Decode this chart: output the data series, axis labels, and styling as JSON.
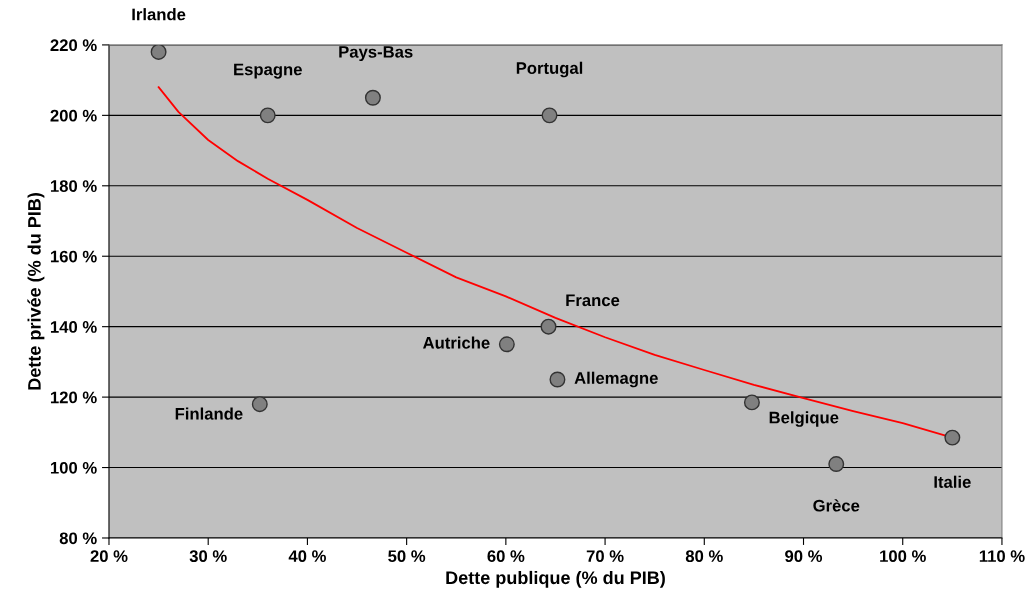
{
  "chart_data": {
    "type": "scatter",
    "xlabel": "Dette publique (% du PIB)",
    "ylabel": "Dette privée (% du PIB)",
    "series": [
      {
        "color": "#808080",
        "marker": "circle",
        "x": [
          25,
          36,
          46.6,
          64.4,
          64.3,
          60.1,
          65.2,
          35.2,
          84.8,
          93.3,
          105
        ],
        "values": [
          218,
          200,
          205,
          200,
          140,
          135,
          125,
          118,
          118.5,
          101,
          108.5
        ]
      },
      {
        "type": "line",
        "color": "#ff0000",
        "marker": "none",
        "x": [
          25,
          27,
          30,
          33,
          36,
          40,
          45,
          50,
          55,
          60,
          65,
          70,
          75,
          80,
          85,
          90,
          95,
          100,
          105
        ],
        "values": [
          208,
          201,
          193,
          187,
          182,
          176,
          168,
          161,
          154,
          148.6,
          142.5,
          137,
          132,
          127.7,
          123.5,
          119.7,
          116,
          112.6,
          108.5
        ]
      }
    ],
    "annotations": [
      {
        "text": "Irlande",
        "x": 25,
        "y": 218
      },
      {
        "text": "Espagne",
        "x": 36,
        "y": 200
      },
      {
        "text": "Pays-Bas",
        "x": 46.6,
        "y": 205
      },
      {
        "text": "Portugal",
        "x": 64.4,
        "y": 200
      },
      {
        "text": "France",
        "x": 64.3,
        "y": 140
      },
      {
        "text": "Autriche",
        "x": 60.1,
        "y": 135
      },
      {
        "text": "Allemagne",
        "x": 65.2,
        "y": 125
      },
      {
        "text": "Finlande",
        "x": 35.2,
        "y": 118
      },
      {
        "text": "Belgique",
        "x": 84.8,
        "y": 118.5
      },
      {
        "text": "Grèce",
        "x": 93.3,
        "y": 101
      },
      {
        "text": "Italie",
        "x": 105,
        "y": 108.5
      }
    ],
    "xlim": [
      20,
      110
    ],
    "xticks": [
      {
        "value": 20,
        "label": "20 %"
      },
      {
        "value": 30,
        "label": "30 %"
      },
      {
        "value": 40,
        "label": "40 %"
      },
      {
        "value": 50,
        "label": "50 %"
      },
      {
        "value": 60,
        "label": "60 %"
      },
      {
        "value": 70,
        "label": "70 %"
      },
      {
        "value": 80,
        "label": "80 %"
      },
      {
        "value": 90,
        "label": "90 %"
      },
      {
        "value": 100,
        "label": "100 %"
      },
      {
        "value": 110,
        "label": "110 %"
      }
    ],
    "ylim": [
      80,
      220
    ],
    "yticks": [
      {
        "value": 80,
        "label": "80 %"
      },
      {
        "value": 100,
        "label": "100 %"
      },
      {
        "value": 120,
        "label": "120 %"
      },
      {
        "value": 140,
        "label": "140 %"
      },
      {
        "value": 160,
        "label": "160 %"
      },
      {
        "value": 180,
        "label": "180 %"
      },
      {
        "value": 200,
        "label": "200 %"
      },
      {
        "value": 220,
        "label": "220 %"
      }
    ],
    "grid": "y",
    "legend": false
  }
}
